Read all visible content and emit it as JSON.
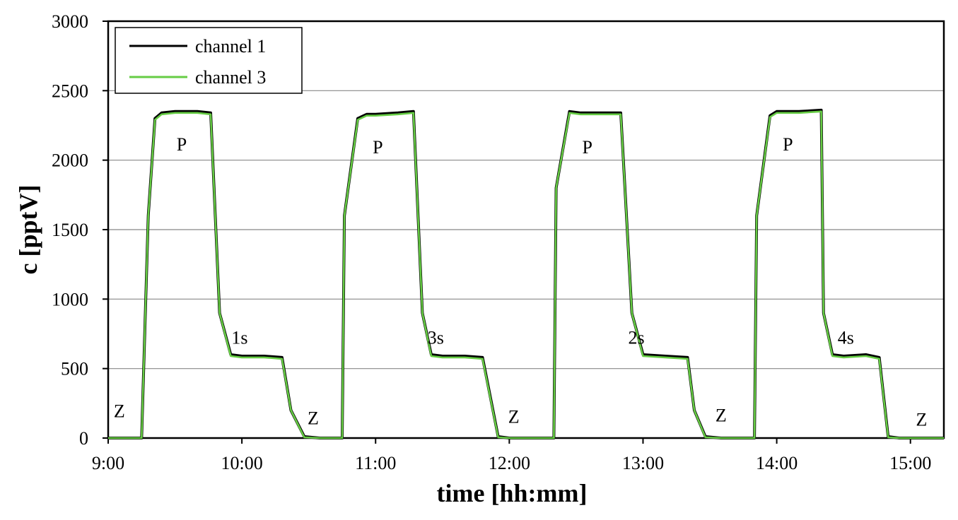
{
  "chart_data": {
    "type": "line",
    "xlabel": "time [hh:mm]",
    "ylabel": "c [pptV]",
    "xlim": [
      "9:00",
      "15:15"
    ],
    "ylim": [
      0,
      3000
    ],
    "yticks": [
      0,
      500,
      1000,
      1500,
      2000,
      2500,
      3000
    ],
    "xticks": [
      "9:00",
      "10:00",
      "11:00",
      "12:00",
      "13:00",
      "14:00",
      "15:00"
    ],
    "grid": "horizontal",
    "legend_position": "top-left",
    "colors": {
      "channel 1": "#000000",
      "channel 3": "#66cc44"
    },
    "series": [
      {
        "name": "channel 1",
        "x": [
          "9:00",
          "9:15",
          "9:18",
          "9:21",
          "9:24",
          "9:30",
          "9:40",
          "9:46",
          "9:50",
          "9:55",
          "10:00",
          "10:10",
          "10:18",
          "10:22",
          "10:28",
          "10:35",
          "10:45",
          "10:46",
          "10:52",
          "10:56",
          "11:00",
          "11:10",
          "11:17",
          "11:21",
          "11:25",
          "11:30",
          "11:40",
          "11:48",
          "11:55",
          "12:00",
          "12:10",
          "12:20",
          "12:21",
          "12:27",
          "12:32",
          "12:40",
          "12:50",
          "12:55",
          "13:00",
          "13:10",
          "13:20",
          "13:23",
          "13:28",
          "13:35",
          "13:45",
          "13:50",
          "13:51",
          "13:57",
          "14:00",
          "14:10",
          "14:20",
          "14:21",
          "14:25",
          "14:30",
          "14:40",
          "14:46",
          "14:50",
          "14:55",
          "15:00",
          "15:15"
        ],
        "y": [
          0,
          0,
          1600,
          2300,
          2340,
          2350,
          2350,
          2340,
          900,
          600,
          590,
          590,
          580,
          200,
          10,
          0,
          0,
          1600,
          2300,
          2330,
          2330,
          2340,
          2350,
          900,
          600,
          590,
          590,
          580,
          10,
          0,
          0,
          0,
          1800,
          2350,
          2340,
          2340,
          2340,
          900,
          600,
          590,
          580,
          200,
          10,
          0,
          0,
          0,
          1600,
          2320,
          2350,
          2350,
          2360,
          900,
          600,
          590,
          600,
          580,
          10,
          0,
          0,
          0
        ]
      },
      {
        "name": "channel 3",
        "x": [
          "9:00",
          "9:15",
          "9:18",
          "9:21",
          "9:24",
          "9:30",
          "9:40",
          "9:46",
          "9:50",
          "9:55",
          "10:00",
          "10:10",
          "10:18",
          "10:22",
          "10:28",
          "10:35",
          "10:45",
          "10:46",
          "10:52",
          "10:56",
          "11:00",
          "11:10",
          "11:17",
          "11:21",
          "11:25",
          "11:30",
          "11:40",
          "11:48",
          "11:55",
          "12:00",
          "12:10",
          "12:20",
          "12:21",
          "12:27",
          "12:32",
          "12:40",
          "12:50",
          "12:55",
          "13:00",
          "13:10",
          "13:20",
          "13:23",
          "13:28",
          "13:35",
          "13:45",
          "13:50",
          "13:51",
          "13:57",
          "14:00",
          "14:10",
          "14:20",
          "14:21",
          "14:25",
          "14:30",
          "14:40",
          "14:46",
          "14:50",
          "14:55",
          "15:00",
          "15:15"
        ],
        "y": [
          0,
          0,
          1600,
          2290,
          2330,
          2340,
          2340,
          2330,
          900,
          590,
          580,
          580,
          570,
          200,
          5,
          0,
          0,
          1600,
          2290,
          2320,
          2320,
          2330,
          2340,
          900,
          590,
          580,
          580,
          570,
          5,
          0,
          0,
          0,
          1800,
          2340,
          2330,
          2330,
          2330,
          900,
          590,
          580,
          570,
          200,
          5,
          0,
          0,
          0,
          1600,
          2310,
          2340,
          2340,
          2350,
          900,
          590,
          580,
          590,
          570,
          5,
          0,
          0,
          0
        ]
      }
    ],
    "annotations": [
      {
        "text": "Z",
        "x": "9:05",
        "y": 150
      },
      {
        "text": "P",
        "x": "9:33",
        "y": 2070
      },
      {
        "text": "1s",
        "x": "9:59",
        "y": 680
      },
      {
        "text": "Z",
        "x": "10:32",
        "y": 100
      },
      {
        "text": "P",
        "x": "11:01",
        "y": 2050
      },
      {
        "text": "3s",
        "x": "11:27",
        "y": 680
      },
      {
        "text": "Z",
        "x": "12:02",
        "y": 110
      },
      {
        "text": "P",
        "x": "12:35",
        "y": 2050
      },
      {
        "text": "2s",
        "x": "12:57",
        "y": 680
      },
      {
        "text": "Z",
        "x": "13:35",
        "y": 120
      },
      {
        "text": "P",
        "x": "14:05",
        "y": 2070
      },
      {
        "text": "4s",
        "x": "14:31",
        "y": 680
      },
      {
        "text": "Z",
        "x": "15:05",
        "y": 90
      }
    ]
  }
}
